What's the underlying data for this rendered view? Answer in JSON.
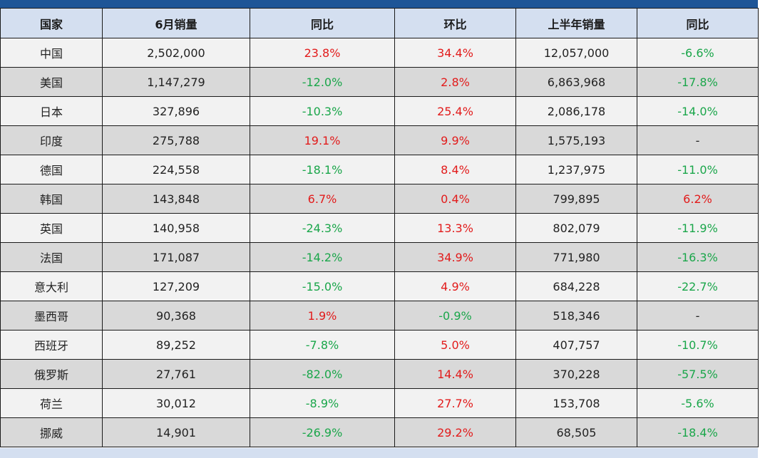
{
  "colors": {
    "header_bar": "#1e5597",
    "header_bg": "#d4dff0",
    "row_light": "#f2f2f2",
    "row_dark": "#d9d9d9",
    "positive": "#e21b1b",
    "negative": "#1aa64a"
  },
  "table": {
    "headers": [
      "国家",
      "6月销量",
      "同比",
      "环比",
      "上半年销量",
      "同比"
    ],
    "rows": [
      {
        "country": "中国",
        "june_sales": "2,502,000",
        "june_yoy": "23.8%",
        "june_mom": "34.4%",
        "h1_sales": "12,057,000",
        "h1_yoy": "-6.6%"
      },
      {
        "country": "美国",
        "june_sales": "1,147,279",
        "june_yoy": "-12.0%",
        "june_mom": "2.8%",
        "h1_sales": "6,863,968",
        "h1_yoy": "-17.8%"
      },
      {
        "country": "日本",
        "june_sales": "327,896",
        "june_yoy": "-10.3%",
        "june_mom": "25.4%",
        "h1_sales": "2,086,178",
        "h1_yoy": "-14.0%"
      },
      {
        "country": "印度",
        "june_sales": "275,788",
        "june_yoy": "19.1%",
        "june_mom": "9.9%",
        "h1_sales": "1,575,193",
        "h1_yoy": "-"
      },
      {
        "country": "德国",
        "june_sales": "224,558",
        "june_yoy": "-18.1%",
        "june_mom": "8.4%",
        "h1_sales": "1,237,975",
        "h1_yoy": "-11.0%"
      },
      {
        "country": "韩国",
        "june_sales": "143,848",
        "june_yoy": "6.7%",
        "june_mom": "0.4%",
        "h1_sales": "799,895",
        "h1_yoy": "6.2%"
      },
      {
        "country": "英国",
        "june_sales": "140,958",
        "june_yoy": "-24.3%",
        "june_mom": "13.3%",
        "h1_sales": "802,079",
        "h1_yoy": "-11.9%"
      },
      {
        "country": "法国",
        "june_sales": "171,087",
        "june_yoy": "-14.2%",
        "june_mom": "34.9%",
        "h1_sales": "771,980",
        "h1_yoy": "-16.3%"
      },
      {
        "country": "意大利",
        "june_sales": "127,209",
        "june_yoy": "-15.0%",
        "june_mom": "4.9%",
        "h1_sales": "684,228",
        "h1_yoy": "-22.7%"
      },
      {
        "country": "墨西哥",
        "june_sales": "90,368",
        "june_yoy": "1.9%",
        "june_mom": "-0.9%",
        "h1_sales": "518,346",
        "h1_yoy": "-"
      },
      {
        "country": "西班牙",
        "june_sales": "89,252",
        "june_yoy": "-7.8%",
        "june_mom": "5.0%",
        "h1_sales": "407,757",
        "h1_yoy": "-10.7%"
      },
      {
        "country": "俄罗斯",
        "june_sales": "27,761",
        "june_yoy": "-82.0%",
        "june_mom": "14.4%",
        "h1_sales": "370,228",
        "h1_yoy": "-57.5%"
      },
      {
        "country": "荷兰",
        "june_sales": "30,012",
        "june_yoy": "-8.9%",
        "june_mom": "27.7%",
        "h1_sales": "153,708",
        "h1_yoy": "-5.6%"
      },
      {
        "country": "挪威",
        "june_sales": "14,901",
        "june_yoy": "-26.9%",
        "june_mom": "29.2%",
        "h1_sales": "68,505",
        "h1_yoy": "-18.4%"
      }
    ]
  }
}
